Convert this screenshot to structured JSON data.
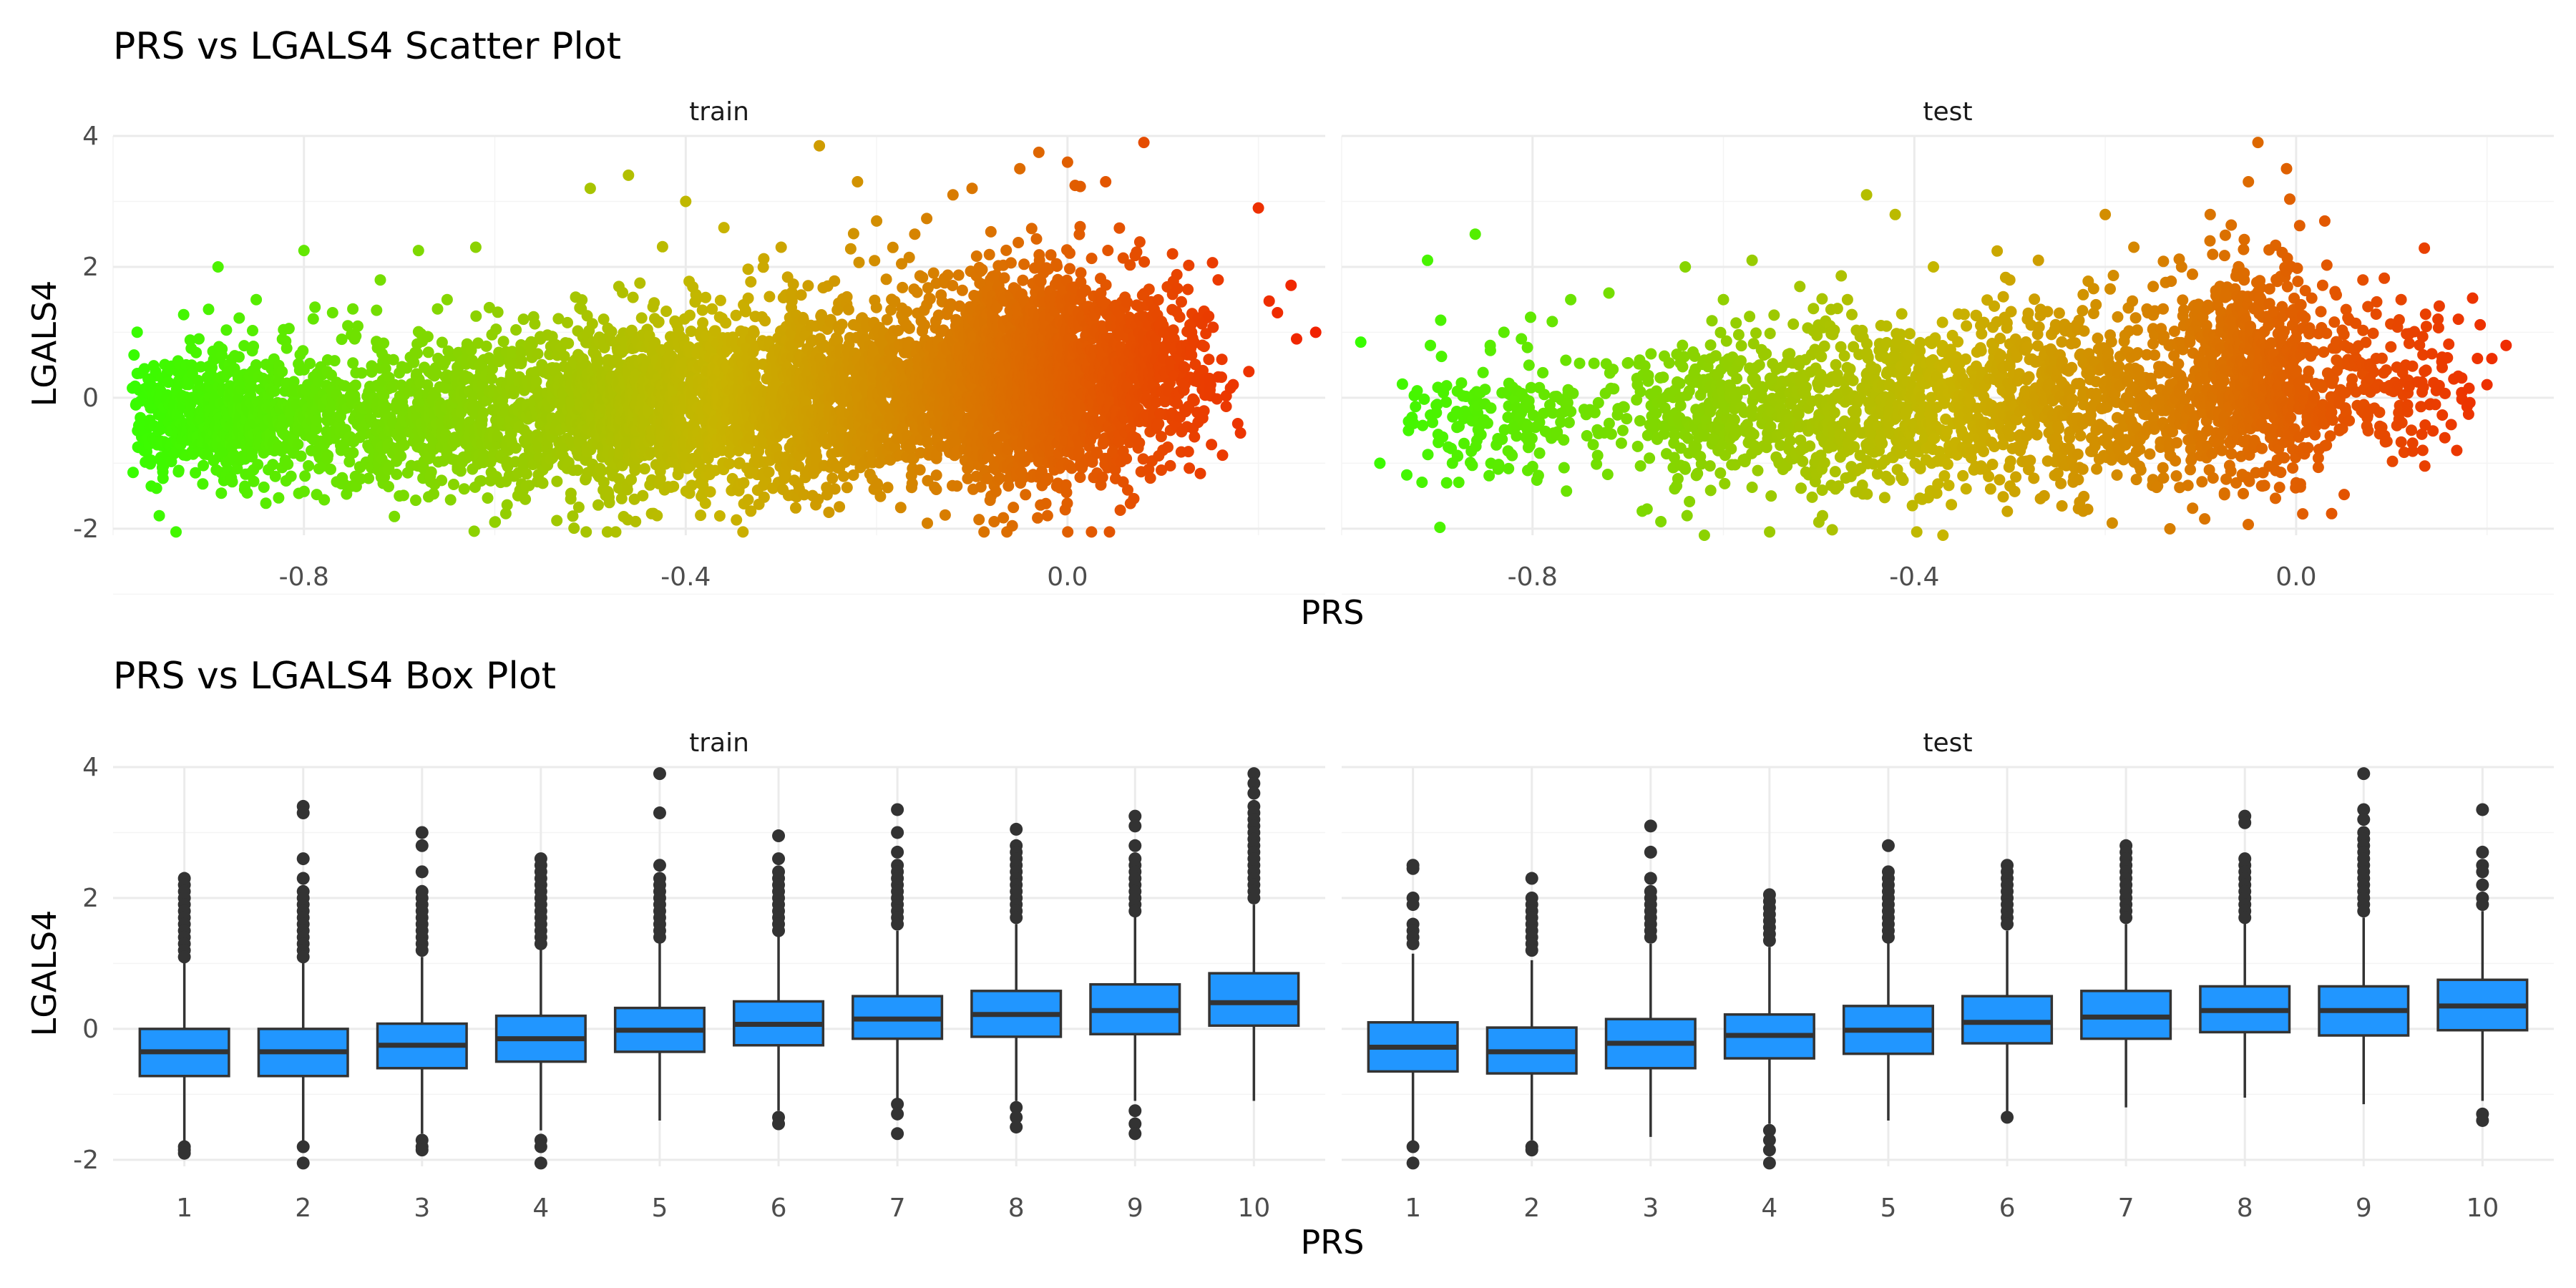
{
  "chart_data": [
    {
      "type": "scatter",
      "title": "PRS vs LGALS4 Scatter Plot",
      "xlabel": "PRS",
      "ylabel": "LGALS4",
      "facets": [
        "train",
        "test"
      ],
      "xlim": [
        -1.0,
        0.27
      ],
      "ylim": [
        -2.1,
        4.0
      ],
      "x_ticks": [
        "-0.8",
        "-0.4",
        "0.0"
      ],
      "x_tick_values": [
        -0.8,
        -0.4,
        0.0
      ],
      "y_ticks": [
        "-2",
        "0",
        "2",
        "4"
      ],
      "y_tick_values": [
        -2,
        0,
        2,
        4
      ],
      "color_scale": {
        "low": "#33ff00",
        "mid": "#c8b400",
        "high": "#f22000",
        "mapped_to": "PRS"
      },
      "grid": true,
      "panels": {
        "train": {
          "points": [
            [
              -0.97,
              -0.6
            ],
            [
              -0.96,
              -1.35
            ],
            [
              -0.95,
              -0.05
            ],
            [
              -0.93,
              0.45
            ],
            [
              -0.91,
              0.9
            ],
            [
              -0.89,
              2.0
            ],
            [
              -0.88,
              -1.1
            ],
            [
              -0.85,
              1.5
            ],
            [
              -0.83,
              -1.2
            ],
            [
              -0.8,
              2.25
            ],
            [
              -0.77,
              1.3
            ],
            [
              -0.72,
              1.8
            ],
            [
              -0.7,
              -1.5
            ],
            [
              -0.68,
              2.25
            ],
            [
              -0.65,
              1.5
            ],
            [
              -0.62,
              2.3
            ],
            [
              -0.6,
              -1.9
            ],
            [
              -0.57,
              1.2
            ],
            [
              -0.55,
              -1.3
            ],
            [
              -0.5,
              3.2
            ],
            [
              -0.47,
              1.7
            ],
            [
              -0.46,
              3.4
            ],
            [
              -0.43,
              -1.8
            ],
            [
              -0.4,
              3.0
            ],
            [
              -0.36,
              2.6
            ],
            [
              -0.34,
              -2.05
            ],
            [
              -0.3,
              2.3
            ],
            [
              -0.26,
              3.85
            ],
            [
              -0.25,
              -1.75
            ],
            [
              -0.22,
              3.3
            ],
            [
              -0.2,
              2.7
            ],
            [
              -0.16,
              2.5
            ],
            [
              -0.12,
              3.1
            ],
            [
              -0.1,
              3.2
            ],
            [
              -0.05,
              3.5
            ],
            [
              -0.03,
              3.75
            ],
            [
              0.0,
              3.6
            ],
            [
              0.04,
              3.3
            ],
            [
              0.08,
              3.9
            ],
            [
              0.11,
              2.2
            ],
            [
              0.13,
              1.0
            ],
            [
              0.15,
              0.2
            ],
            [
              0.19,
              0.4
            ],
            [
              0.2,
              2.9
            ],
            [
              0.22,
              1.3
            ],
            [
              0.24,
              0.9
            ],
            [
              0.26,
              1.0
            ],
            [
              0.1,
              -0.8
            ],
            [
              -0.08,
              -1.5
            ],
            [
              -0.2,
              -1.4
            ],
            [
              -0.48,
              -1.6
            ],
            [
              -0.75,
              -1.35
            ],
            [
              0.05,
              -1.1
            ]
          ],
          "clusters": [
            {
              "x": -0.88,
              "y": -0.3,
              "sx": 0.055,
              "sy": 0.5,
              "n": 650
            },
            {
              "x": -0.68,
              "y": -0.25,
              "sx": 0.085,
              "sy": 0.55,
              "n": 700
            },
            {
              "x": -0.45,
              "y": -0.15,
              "sx": 0.085,
              "sy": 0.65,
              "n": 1400
            },
            {
              "x": -0.24,
              "y": 0.05,
              "sx": 0.085,
              "sy": 0.7,
              "n": 1300
            },
            {
              "x": -0.04,
              "y": 0.35,
              "sx": 0.06,
              "sy": 0.8,
              "n": 1900
            },
            {
              "x": 0.08,
              "y": 0.35,
              "sx": 0.04,
              "sy": 0.65,
              "n": 350
            }
          ]
        },
        "test": {
          "points": [
            [
              -0.98,
              0.85
            ],
            [
              -0.96,
              -1.0
            ],
            [
              -0.93,
              -0.5
            ],
            [
              -0.91,
              2.1
            ],
            [
              -0.89,
              -1.3
            ],
            [
              -0.86,
              2.5
            ],
            [
              -0.83,
              1.0
            ],
            [
              -0.8,
              -1.05
            ],
            [
              -0.76,
              1.5
            ],
            [
              -0.72,
              1.6
            ],
            [
              -0.68,
              -1.7
            ],
            [
              -0.64,
              2.0
            ],
            [
              -0.62,
              -2.1
            ],
            [
              -0.6,
              1.5
            ],
            [
              -0.57,
              2.1
            ],
            [
              -0.55,
              -1.5
            ],
            [
              -0.52,
              1.7
            ],
            [
              -0.47,
              1.5
            ],
            [
              -0.45,
              3.1
            ],
            [
              -0.42,
              2.8
            ],
            [
              -0.38,
              2.0
            ],
            [
              -0.37,
              -2.1
            ],
            [
              -0.3,
              1.8
            ],
            [
              -0.27,
              2.1
            ],
            [
              -0.2,
              2.8
            ],
            [
              -0.17,
              2.3
            ],
            [
              -0.12,
              2.0
            ],
            [
              -0.09,
              2.8
            ],
            [
              -0.06,
              2.0
            ],
            [
              -0.05,
              3.3
            ],
            [
              -0.04,
              3.9
            ],
            [
              -0.01,
              3.5
            ],
            [
              0.03,
              2.7
            ],
            [
              0.07,
              1.8
            ],
            [
              0.11,
              1.5
            ],
            [
              0.15,
              1.4
            ],
            [
              0.17,
              1.2
            ],
            [
              0.19,
              0.6
            ],
            [
              0.2,
              0.2
            ],
            [
              0.22,
              0.8
            ],
            [
              0.0,
              -1.3
            ],
            [
              -0.15,
              -1.25
            ],
            [
              -0.5,
              -1.9
            ]
          ],
          "clusters": [
            {
              "x": -0.84,
              "y": -0.3,
              "sx": 0.05,
              "sy": 0.5,
              "n": 160
            },
            {
              "x": -0.61,
              "y": -0.2,
              "sx": 0.07,
              "sy": 0.55,
              "n": 350
            },
            {
              "x": -0.44,
              "y": -0.15,
              "sx": 0.07,
              "sy": 0.65,
              "n": 550
            },
            {
              "x": -0.24,
              "y": 0.0,
              "sx": 0.08,
              "sy": 0.7,
              "n": 600
            },
            {
              "x": -0.05,
              "y": 0.3,
              "sx": 0.05,
              "sy": 0.8,
              "n": 800
            },
            {
              "x": 0.1,
              "y": 0.3,
              "sx": 0.04,
              "sy": 0.6,
              "n": 150
            }
          ]
        }
      }
    },
    {
      "type": "box",
      "title": "PRS vs LGALS4 Box Plot",
      "xlabel": "PRS",
      "ylabel": "LGALS4",
      "facets": [
        "train",
        "test"
      ],
      "categories": [
        "1",
        "2",
        "3",
        "4",
        "5",
        "6",
        "7",
        "8",
        "9",
        "10"
      ],
      "ylim": [
        -2.1,
        4.0
      ],
      "y_ticks": [
        "-2",
        "0",
        "2",
        "4"
      ],
      "y_tick_values": [
        -2,
        0,
        2,
        4
      ],
      "box_color": "#2196ff",
      "grid": true,
      "panels": {
        "train": [
          {
            "q1": -0.72,
            "median": -0.35,
            "q3": 0.0,
            "lo": -1.75,
            "hi": 1.05,
            "outliers": [
              2.3,
              2.2,
              2.1,
              2.0,
              1.9,
              1.8,
              1.7,
              1.6,
              1.5,
              1.4,
              1.3,
              1.2,
              1.1,
              -1.8,
              -1.85,
              -1.9
            ]
          },
          {
            "q1": -0.72,
            "median": -0.35,
            "q3": 0.0,
            "lo": -1.75,
            "hi": 1.05,
            "outliers": [
              3.4,
              3.3,
              2.6,
              2.3,
              2.1,
              2.0,
              1.9,
              1.8,
              1.7,
              1.6,
              1.5,
              1.4,
              1.3,
              1.2,
              1.1,
              -1.8,
              -2.05
            ]
          },
          {
            "q1": -0.6,
            "median": -0.25,
            "q3": 0.08,
            "lo": -1.6,
            "hi": 1.1,
            "outliers": [
              3.0,
              2.8,
              2.4,
              2.1,
              2.0,
              1.9,
              1.8,
              1.7,
              1.6,
              1.5,
              1.4,
              1.3,
              1.2,
              -1.7,
              -1.8,
              -1.85
            ]
          },
          {
            "q1": -0.5,
            "median": -0.15,
            "q3": 0.2,
            "lo": -1.55,
            "hi": 1.25,
            "outliers": [
              2.6,
              2.5,
              2.4,
              2.3,
              2.2,
              2.1,
              2.0,
              1.9,
              1.8,
              1.7,
              1.6,
              1.5,
              1.4,
              1.3,
              -1.7,
              -1.8,
              -2.05
            ]
          },
          {
            "q1": -0.35,
            "median": -0.02,
            "q3": 0.32,
            "lo": -1.4,
            "hi": 1.35,
            "outliers": [
              3.9,
              3.3,
              2.5,
              2.3,
              2.2,
              2.1,
              2.0,
              1.9,
              1.8,
              1.7,
              1.6,
              1.5,
              1.4
            ]
          },
          {
            "q1": -0.25,
            "median": 0.07,
            "q3": 0.42,
            "lo": -1.25,
            "hi": 1.45,
            "outliers": [
              2.95,
              2.6,
              2.4,
              2.3,
              2.2,
              2.1,
              2.0,
              1.9,
              1.8,
              1.7,
              1.6,
              1.5,
              -1.35,
              -1.45
            ]
          },
          {
            "q1": -0.15,
            "median": 0.15,
            "q3": 0.5,
            "lo": -1.1,
            "hi": 1.5,
            "outliers": [
              3.35,
              3.0,
              2.7,
              2.5,
              2.4,
              2.3,
              2.2,
              2.1,
              2.0,
              1.9,
              1.8,
              1.7,
              1.6,
              -1.15,
              -1.3,
              -1.6
            ]
          },
          {
            "q1": -0.12,
            "median": 0.22,
            "q3": 0.58,
            "lo": -1.1,
            "hi": 1.6,
            "outliers": [
              3.05,
              2.8,
              2.7,
              2.6,
              2.5,
              2.4,
              2.3,
              2.2,
              2.1,
              2.0,
              1.9,
              1.8,
              1.7,
              -1.2,
              -1.35,
              -1.5
            ]
          },
          {
            "q1": -0.08,
            "median": 0.28,
            "q3": 0.68,
            "lo": -1.1,
            "hi": 1.75,
            "outliers": [
              3.25,
              3.1,
              2.8,
              2.6,
              2.5,
              2.4,
              2.3,
              2.2,
              2.1,
              2.0,
              1.9,
              1.8,
              -1.25,
              -1.45,
              -1.6
            ]
          },
          {
            "q1": 0.05,
            "median": 0.4,
            "q3": 0.85,
            "lo": -1.1,
            "hi": 1.9,
            "outliers": [
              3.9,
              3.75,
              3.6,
              3.4,
              3.3,
              3.2,
              3.1,
              3.0,
              2.9,
              2.8,
              2.7,
              2.6,
              2.5,
              2.4,
              2.3,
              2.2,
              2.1,
              2.0
            ]
          }
        ],
        "test": [
          {
            "q1": -0.65,
            "median": -0.28,
            "q3": 0.1,
            "lo": -1.75,
            "hi": 1.15,
            "outliers": [
              2.5,
              2.45,
              2.0,
              1.9,
              1.6,
              1.5,
              1.4,
              1.3,
              -1.8,
              -2.05
            ]
          },
          {
            "q1": -0.68,
            "median": -0.35,
            "q3": 0.02,
            "lo": -1.7,
            "hi": 1.05,
            "outliers": [
              2.3,
              2.0,
              1.9,
              1.8,
              1.7,
              1.6,
              1.5,
              1.4,
              1.3,
              1.2,
              -1.8,
              -1.85
            ]
          },
          {
            "q1": -0.6,
            "median": -0.22,
            "q3": 0.15,
            "lo": -1.65,
            "hi": 1.3,
            "outliers": [
              3.1,
              2.7,
              2.3,
              2.1,
              2.0,
              1.9,
              1.8,
              1.7,
              1.6,
              1.5,
              1.4
            ]
          },
          {
            "q1": -0.45,
            "median": -0.1,
            "q3": 0.22,
            "lo": -1.45,
            "hi": 1.25,
            "outliers": [
              2.05,
              1.95,
              1.85,
              1.75,
              1.65,
              1.55,
              1.45,
              1.35,
              -1.55,
              -1.7,
              -1.85,
              -2.05
            ]
          },
          {
            "q1": -0.38,
            "median": -0.02,
            "q3": 0.35,
            "lo": -1.4,
            "hi": 1.35,
            "outliers": [
              2.8,
              2.4,
              2.3,
              2.2,
              2.1,
              2.0,
              1.9,
              1.8,
              1.7,
              1.6,
              1.5,
              1.4
            ]
          },
          {
            "q1": -0.22,
            "median": 0.1,
            "q3": 0.5,
            "lo": -1.3,
            "hi": 1.5,
            "outliers": [
              2.5,
              2.4,
              2.3,
              2.2,
              2.1,
              2.0,
              1.9,
              1.8,
              1.7,
              1.6,
              -1.35
            ]
          },
          {
            "q1": -0.15,
            "median": 0.18,
            "q3": 0.58,
            "lo": -1.2,
            "hi": 1.6,
            "outliers": [
              2.8,
              2.7,
              2.6,
              2.5,
              2.4,
              2.3,
              2.2,
              2.1,
              2.0,
              1.9,
              1.8,
              1.7
            ]
          },
          {
            "q1": -0.05,
            "median": 0.28,
            "q3": 0.65,
            "lo": -1.05,
            "hi": 1.65,
            "outliers": [
              3.25,
              3.15,
              2.6,
              2.5,
              2.4,
              2.3,
              2.2,
              2.1,
              2.0,
              1.9,
              1.8,
              1.7
            ]
          },
          {
            "q1": -0.1,
            "median": 0.28,
            "q3": 0.65,
            "lo": -1.15,
            "hi": 1.7,
            "outliers": [
              3.9,
              3.35,
              3.2,
              3.0,
              2.9,
              2.8,
              2.7,
              2.6,
              2.5,
              2.4,
              2.3,
              2.2,
              2.1,
              2.0,
              1.9,
              1.8
            ]
          },
          {
            "q1": -0.02,
            "median": 0.35,
            "q3": 0.75,
            "lo": -1.1,
            "hi": 1.8,
            "outliers": [
              3.35,
              2.7,
              2.5,
              2.4,
              2.2,
              2.0,
              1.9,
              -1.3,
              -1.4
            ]
          }
        ]
      }
    }
  ]
}
